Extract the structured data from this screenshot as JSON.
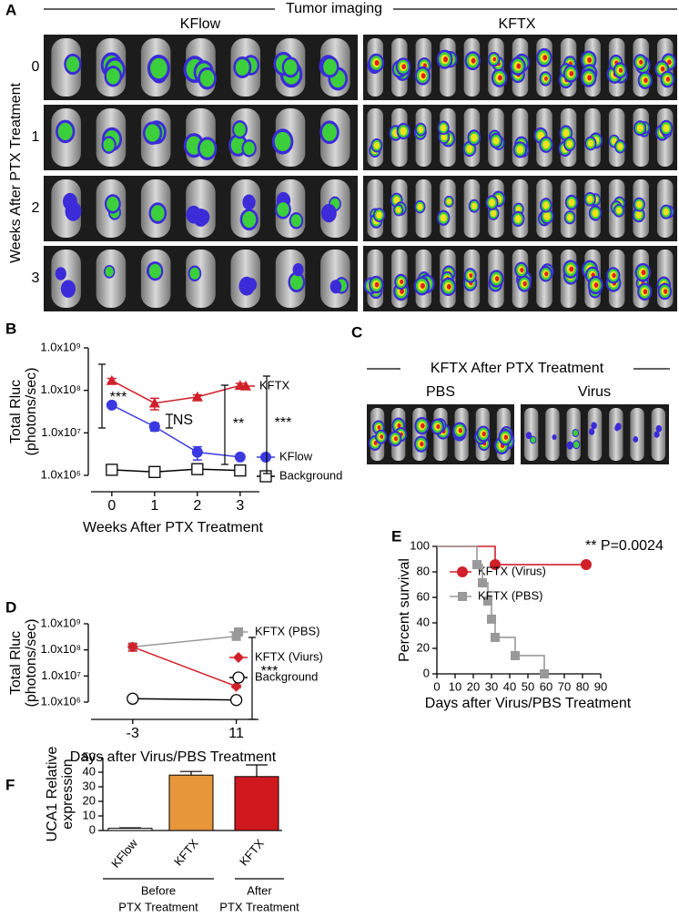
{
  "panel_a": {
    "label": "A",
    "title": "Tumor imaging",
    "groups": [
      "KFlow",
      "KFTX"
    ],
    "ylabel": "Weeks After PTX Treatment",
    "rows": [
      "0",
      "1",
      "2",
      "3"
    ]
  },
  "panel_c": {
    "label": "C",
    "title": "KFTX After PTX Treatment",
    "groups": [
      "PBS",
      "Virus"
    ]
  },
  "chart_data": [
    {
      "panel": "B",
      "type": "line",
      "yscale": "log",
      "ylabel": [
        "Total Rluc",
        "(photons/sec)"
      ],
      "xlabel": "Weeks After PTX Treatment",
      "x": [
        0,
        1,
        2,
        3
      ],
      "xlim": [
        -0.55,
        3.45
      ],
      "xticks": [
        0,
        1,
        2,
        3
      ],
      "ylim": [
        1000000,
        1000000000
      ],
      "yticks": [
        {
          "value": 1000000,
          "label": "1.0x10⁶"
        },
        {
          "value": 10000000,
          "label": "1.0x10⁷"
        },
        {
          "value": 100000000,
          "label": "1.0x10⁸"
        },
        {
          "value": 1000000000,
          "label": "1.0x10⁹"
        }
      ],
      "series": [
        {
          "name": "KFTX",
          "color": "#d0202a",
          "marker": "triangle",
          "values": [
            170000000,
            50000000,
            70000000,
            130000000
          ],
          "errors": [
            20000000,
            15000000,
            8000000,
            15000000
          ]
        },
        {
          "name": "KFlow",
          "color": "#3a3ae0",
          "marker": "circle",
          "values": [
            45000000,
            14000000,
            3500000,
            2700000
          ],
          "errors": [
            4000000,
            3000000,
            1200000,
            300000
          ]
        },
        {
          "name": "Background",
          "color": "#000000",
          "marker": "open-square",
          "values": [
            1350000,
            1200000,
            1400000,
            1300000
          ]
        }
      ],
      "annotations": [
        "***",
        "NS",
        "**",
        "***"
      ]
    },
    {
      "panel": "D",
      "type": "line",
      "yscale": "log",
      "ylabel": [
        "Total Rluc",
        "(photons/sec)"
      ],
      "xlabel": "Days after Virus/PBS Treatment",
      "x": [
        -3,
        11
      ],
      "xlim": [
        -9,
        14
      ],
      "xticks": [
        -3,
        11
      ],
      "ylim": [
        1000000,
        1000000000
      ],
      "yticks": [
        {
          "value": 1000000,
          "label": "1.0x10⁶"
        },
        {
          "value": 10000000,
          "label": "1.0x10⁷"
        },
        {
          "value": 100000000,
          "label": "1.0x10⁸"
        },
        {
          "value": 1000000000,
          "label": "1.0x10⁹"
        }
      ],
      "series": [
        {
          "name": "KFTX (PBS)",
          "color": "#999999",
          "marker": "square",
          "values": [
            130000000,
            330000000
          ]
        },
        {
          "name": "KFTX (Viurs)",
          "color": "#d0202a",
          "marker": "diamond",
          "values": [
            130000000,
            4000000
          ],
          "errors": [
            40000000,
            500000
          ]
        },
        {
          "name": "Background",
          "color": "#000000",
          "marker": "open-circle",
          "values": [
            1350000,
            1200000
          ]
        }
      ],
      "annotations": [
        "***"
      ]
    },
    {
      "panel": "E",
      "type": "step",
      "ylabel": "Percent survival",
      "xlabel": "Days after Virus/PBS Treatment",
      "xlim": [
        0,
        90
      ],
      "xticks": [
        0,
        10,
        20,
        30,
        40,
        50,
        60,
        70,
        80,
        90
      ],
      "ylim": [
        0,
        100
      ],
      "yticks": [
        0,
        20,
        40,
        60,
        80,
        100
      ],
      "series": [
        {
          "name": "KFTX (Virus)",
          "color": "#d0202a",
          "marker": "circle",
          "x": [
            0,
            32,
            82
          ],
          "values": [
            100,
            85.7,
            85.7
          ]
        },
        {
          "name": "KFTX (PBS)",
          "color": "#999999",
          "marker": "square",
          "x": [
            0,
            22,
            25,
            28,
            30,
            32,
            43,
            59
          ],
          "values": [
            100,
            85.7,
            71.4,
            57.1,
            42.9,
            28.6,
            14.3,
            0
          ]
        }
      ],
      "annotations": [
        "** P=0.0024"
      ]
    },
    {
      "panel": "F",
      "type": "bar",
      "ylabel": [
        "UCA1 Relative",
        "expression"
      ],
      "categories": [
        "KFlow",
        "KFTX",
        "KFTX"
      ],
      "values": [
        1.5,
        38,
        37
      ],
      "errors": [
        0.3,
        2.5,
        8
      ],
      "colors": [
        "#ffffff",
        "#e8963a",
        "#d0191f"
      ],
      "ylim": [
        0,
        50
      ],
      "yticks": [
        0,
        10,
        20,
        30,
        40,
        50
      ],
      "group_labels": [
        [
          "Before",
          "PTX Treatment"
        ],
        [
          "After",
          "PTX Treatment"
        ]
      ]
    }
  ]
}
